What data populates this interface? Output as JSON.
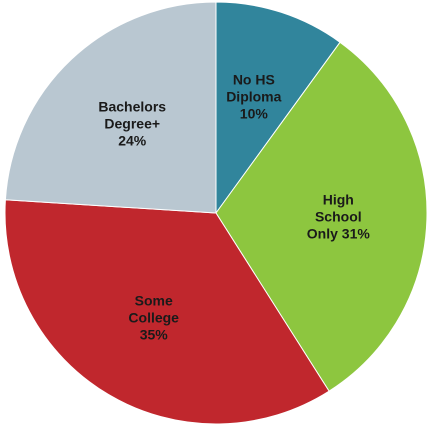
{
  "chart_data": {
    "type": "pie",
    "categories": [
      "No HS Diploma",
      "High School Only",
      "Some College",
      "Bachelors Degree+"
    ],
    "values": [
      10,
      31,
      35,
      24
    ],
    "value_labels": [
      "10%",
      "31%",
      "35%",
      "24%"
    ],
    "colors": [
      "#31859c",
      "#8dc63f",
      "#c0272d",
      "#b9c7d1"
    ]
  }
}
